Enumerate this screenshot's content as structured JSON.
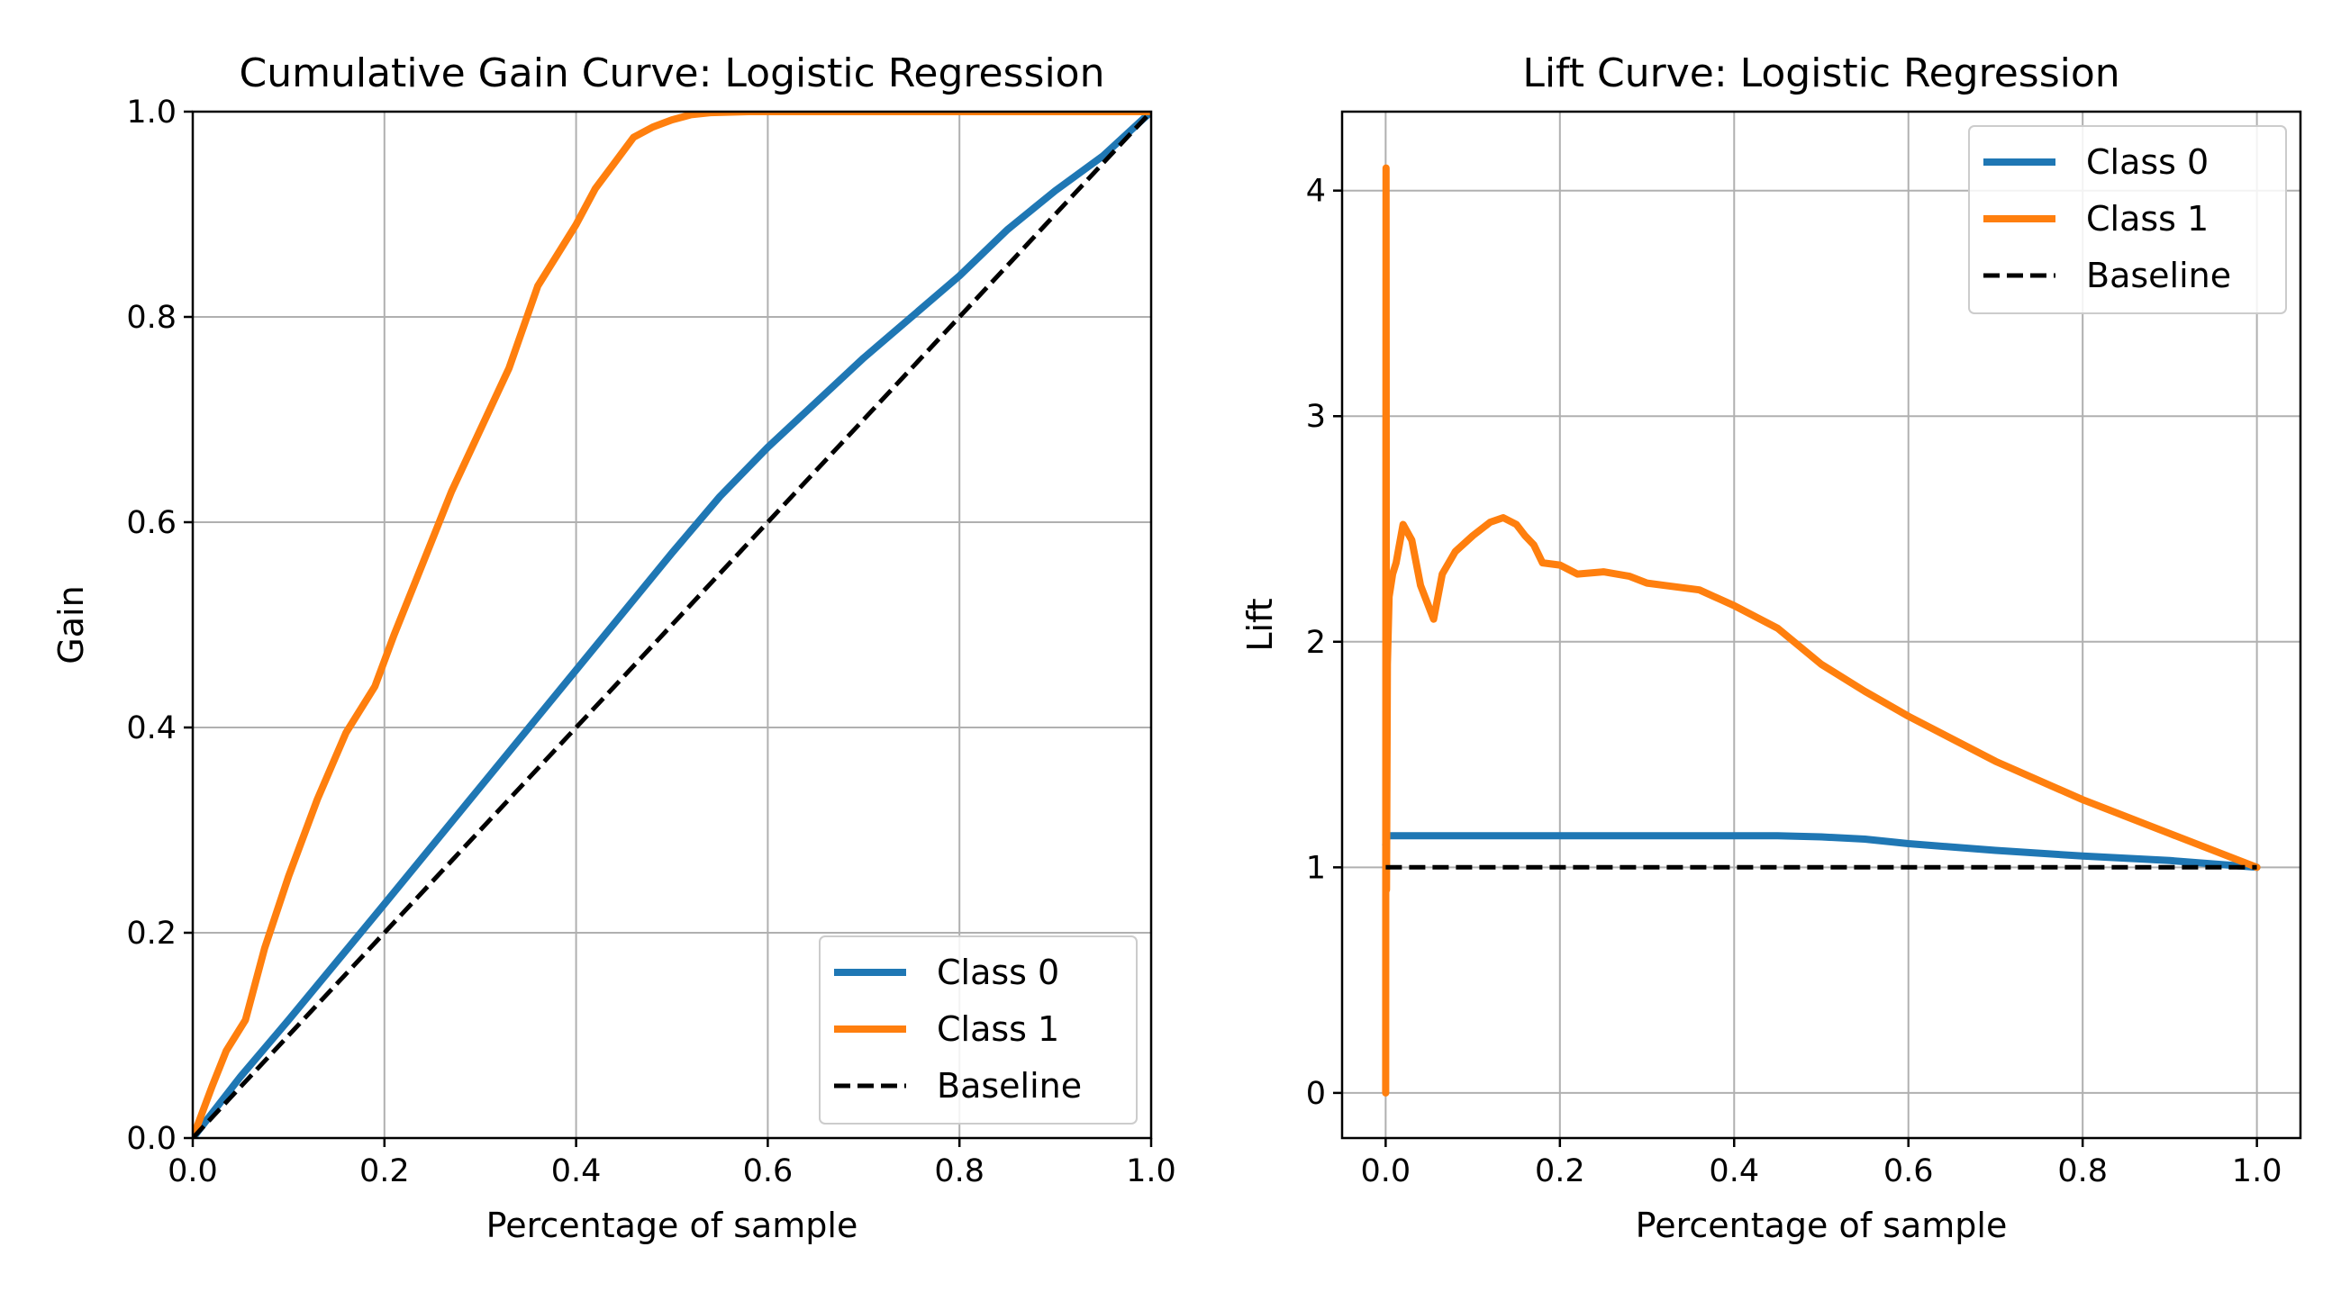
{
  "chart_data": [
    {
      "type": "line",
      "title": "Cumulative Gain Curve: Logistic Regression",
      "xlabel": "Percentage of sample",
      "ylabel": "Gain",
      "xlim": [
        0.0,
        1.0
      ],
      "ylim": [
        0.0,
        1.0
      ],
      "xticks": [
        "0.0",
        "0.2",
        "0.4",
        "0.6",
        "0.8",
        "1.0"
      ],
      "yticks": [
        "0.0",
        "0.2",
        "0.4",
        "0.6",
        "0.8",
        "1.0"
      ],
      "grid": true,
      "legend_position": "lower-right",
      "series": [
        {
          "name": "Class 0",
          "color": "#1f77b4",
          "dash": "solid",
          "x": [
            0.0,
            0.05,
            0.1,
            0.2,
            0.3,
            0.4,
            0.5,
            0.55,
            0.6,
            0.7,
            0.8,
            0.85,
            0.9,
            0.95,
            1.0
          ],
          "y": [
            0.0,
            0.06,
            0.115,
            0.228,
            0.342,
            0.456,
            0.57,
            0.625,
            0.673,
            0.76,
            0.84,
            0.885,
            0.923,
            0.957,
            1.0
          ]
        },
        {
          "name": "Class 1",
          "color": "#ff7f0e",
          "dash": "solid",
          "x": [
            0.0,
            0.02,
            0.035,
            0.055,
            0.075,
            0.1,
            0.13,
            0.16,
            0.19,
            0.21,
            0.24,
            0.27,
            0.3,
            0.33,
            0.36,
            0.38,
            0.4,
            0.42,
            0.44,
            0.46,
            0.48,
            0.5,
            0.52,
            0.54,
            0.58,
            0.62,
            0.7,
            0.8,
            0.9,
            1.0
          ],
          "y": [
            0.0,
            0.05,
            0.085,
            0.115,
            0.185,
            0.255,
            0.33,
            0.395,
            0.44,
            0.49,
            0.56,
            0.63,
            0.69,
            0.75,
            0.83,
            0.86,
            0.89,
            0.925,
            0.95,
            0.975,
            0.985,
            0.992,
            0.997,
            0.999,
            1.0,
            1.0,
            1.0,
            1.0,
            1.0,
            1.0
          ]
        },
        {
          "name": "Baseline",
          "color": "#000000",
          "dash": "dashed",
          "x": [
            0.0,
            1.0
          ],
          "y": [
            0.0,
            1.0
          ]
        }
      ]
    },
    {
      "type": "line",
      "title": "Lift Curve: Logistic Regression",
      "xlabel": "Percentage of sample",
      "ylabel": "Lift",
      "xlim": [
        -0.05,
        1.05
      ],
      "ylim": [
        -0.2,
        4.35
      ],
      "xticks": [
        "0.0",
        "0.2",
        "0.4",
        "0.6",
        "0.8",
        "1.0"
      ],
      "yticks": [
        "0",
        "1",
        "2",
        "3",
        "4"
      ],
      "grid": true,
      "legend_position": "upper-right",
      "series": [
        {
          "name": "Class 0",
          "color": "#1f77b4",
          "dash": "solid",
          "x": [
            0.0,
            0.002,
            0.005,
            0.1,
            0.2,
            0.3,
            0.4,
            0.45,
            0.5,
            0.55,
            0.6,
            0.7,
            0.8,
            0.9,
            1.0
          ],
          "y": [
            1.1,
            1.14,
            1.14,
            1.14,
            1.14,
            1.14,
            1.14,
            1.14,
            1.135,
            1.125,
            1.105,
            1.075,
            1.05,
            1.03,
            1.0
          ]
        },
        {
          "name": "Class 1",
          "color": "#ff7f0e",
          "dash": "solid",
          "x": [
            0.0,
            0.0005,
            0.001,
            0.0015,
            0.002,
            0.004,
            0.008,
            0.012,
            0.02,
            0.03,
            0.04,
            0.055,
            0.065,
            0.08,
            0.1,
            0.12,
            0.135,
            0.15,
            0.16,
            0.17,
            0.18,
            0.2,
            0.22,
            0.25,
            0.28,
            0.3,
            0.32,
            0.36,
            0.4,
            0.45,
            0.5,
            0.55,
            0.6,
            0.7,
            0.8,
            0.9,
            1.0
          ],
          "y": [
            0.0,
            4.1,
            0.9,
            1.4,
            1.9,
            2.2,
            2.3,
            2.35,
            2.52,
            2.45,
            2.25,
            2.1,
            2.3,
            2.4,
            2.47,
            2.53,
            2.55,
            2.52,
            2.47,
            2.43,
            2.35,
            2.34,
            2.3,
            2.31,
            2.29,
            2.26,
            2.25,
            2.23,
            2.16,
            2.06,
            1.9,
            1.78,
            1.67,
            1.47,
            1.3,
            1.15,
            1.0
          ]
        },
        {
          "name": "Baseline",
          "color": "#000000",
          "dash": "dashed",
          "x": [
            0.0,
            1.0
          ],
          "y": [
            1.0,
            1.0
          ]
        }
      ]
    }
  ]
}
